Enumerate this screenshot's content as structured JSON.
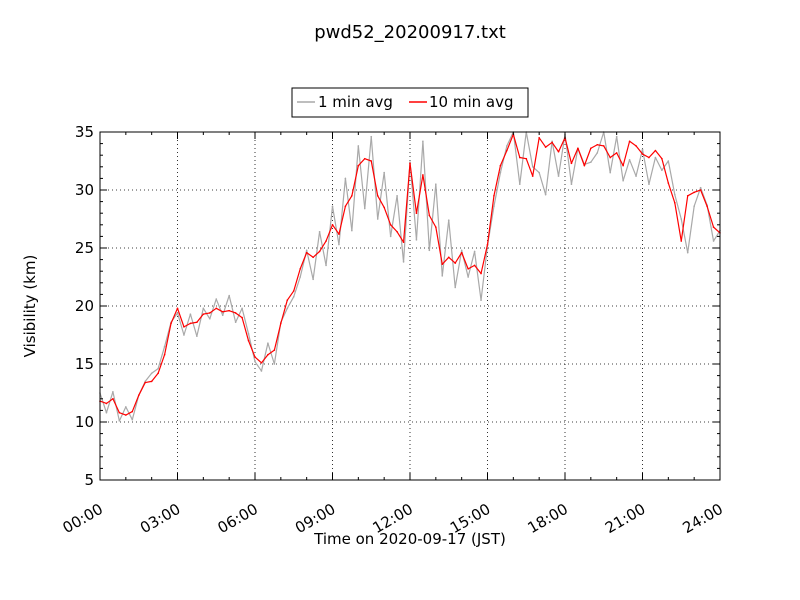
{
  "chart_data": {
    "type": "line",
    "title": "pwd52_20200917.txt",
    "xlabel": "Time on 2020-09-17 (JST)",
    "ylabel": "Visibility (km)",
    "xlim": [
      "00:00",
      "24:00"
    ],
    "ylim": [
      5,
      35
    ],
    "x_tick_labels": [
      "00:00",
      "03:00",
      "06:00",
      "09:00",
      "12:00",
      "15:00",
      "18:00",
      "21:00",
      "24:00"
    ],
    "y_tick_labels": [
      "5",
      "10",
      "15",
      "20",
      "25",
      "30",
      "35"
    ],
    "grid": true,
    "legend_position": "top-center",
    "series": [
      {
        "name": "1 min avg",
        "color": "#a9a9a9",
        "x_hours": [
          0,
          0.25,
          0.5,
          0.75,
          1,
          1.25,
          1.5,
          1.75,
          2,
          2.25,
          2.5,
          2.75,
          3,
          3.25,
          3.5,
          3.75,
          4,
          4.25,
          4.5,
          4.75,
          5,
          5.25,
          5.5,
          5.75,
          6,
          6.25,
          6.5,
          6.75,
          7,
          7.25,
          7.5,
          7.75,
          8,
          8.25,
          8.5,
          8.75,
          9,
          9.25,
          9.5,
          9.75,
          10,
          10.25,
          10.5,
          10.75,
          11,
          11.25,
          11.5,
          11.75,
          12,
          12.25,
          12.5,
          12.75,
          13,
          13.25,
          13.5,
          13.75,
          14,
          14.25,
          14.5,
          14.75,
          15,
          15.25,
          15.5,
          15.75,
          16,
          16.25,
          16.5,
          16.75,
          17,
          17.25,
          17.5,
          17.75,
          18,
          18.25,
          18.5,
          18.75,
          19,
          19.25,
          19.5,
          19.75,
          20,
          20.25,
          20.5,
          20.75,
          21,
          21.25,
          21.5,
          21.75,
          22,
          22.25,
          22.5,
          22.75,
          23,
          23.25,
          23.5,
          23.75,
          24
        ],
        "values": [
          12.5,
          10.8,
          12.6,
          10.1,
          11.3,
          10.2,
          12.3,
          13.5,
          14.2,
          14.6,
          16.5,
          18.6,
          19.4,
          17.5,
          19.3,
          17.4,
          19.8,
          18.9,
          20.6,
          19.2,
          20.9,
          18.6,
          19.8,
          17.6,
          15.2,
          14.4,
          16.8,
          15.0,
          18.6,
          19.8,
          20.8,
          22.5,
          24.8,
          22.3,
          26.4,
          23.5,
          28.6,
          25.3,
          31.0,
          26.5,
          33.8,
          28.4,
          34.6,
          27.5,
          31.5,
          26.0,
          29.5,
          23.8,
          32.4,
          25.7,
          34.2,
          24.8,
          30.5,
          22.6,
          27.4,
          21.6,
          24.8,
          22.5,
          24.7,
          20.5,
          25.2,
          28.6,
          31.5,
          33.8,
          35.0,
          30.5,
          35.0,
          32.0,
          31.5,
          29.6,
          34.2,
          31.2,
          34.8,
          30.5,
          33.6,
          32.2,
          32.4,
          33.2,
          35.0,
          31.5,
          34.6,
          30.8,
          32.6,
          31.2,
          33.5,
          30.5,
          32.8,
          31.7,
          32.5,
          29.6,
          27.5,
          24.6,
          28.6,
          30.2,
          28.7,
          25.6,
          26.5
        ]
      },
      {
        "name": "10 min avg",
        "color": "#ff0000",
        "x_hours": [
          0,
          0.25,
          0.5,
          0.75,
          1,
          1.25,
          1.5,
          1.75,
          2,
          2.25,
          2.5,
          2.75,
          3,
          3.25,
          3.5,
          3.75,
          4,
          4.25,
          4.5,
          4.75,
          5,
          5.25,
          5.5,
          5.75,
          6,
          6.25,
          6.5,
          6.75,
          7,
          7.25,
          7.5,
          7.75,
          8,
          8.25,
          8.5,
          8.75,
          9,
          9.25,
          9.5,
          9.75,
          10,
          10.25,
          10.5,
          10.75,
          11,
          11.25,
          11.5,
          11.75,
          12,
          12.25,
          12.5,
          12.75,
          13,
          13.25,
          13.5,
          13.75,
          14,
          14.25,
          14.5,
          14.75,
          15,
          15.25,
          15.5,
          15.75,
          16,
          16.25,
          16.5,
          16.75,
          17,
          17.25,
          17.5,
          17.75,
          18,
          18.25,
          18.5,
          18.75,
          19,
          19.25,
          19.5,
          19.75,
          20,
          20.25,
          20.5,
          20.75,
          21,
          21.25,
          21.5,
          21.75,
          22,
          22.25,
          22.5,
          22.75,
          23,
          23.25,
          23.5,
          23.75,
          24
        ],
        "values": [
          11.8,
          11.6,
          12.0,
          10.8,
          10.6,
          10.9,
          12.3,
          13.4,
          13.5,
          14.2,
          15.8,
          18.5,
          19.8,
          18.2,
          18.5,
          18.6,
          19.3,
          19.4,
          19.8,
          19.5,
          19.6,
          19.4,
          19.0,
          17.0,
          15.6,
          15.1,
          15.8,
          16.2,
          18.5,
          20.5,
          21.3,
          23.2,
          24.6,
          24.2,
          24.7,
          25.6,
          27.0,
          26.2,
          28.6,
          29.5,
          32.1,
          32.7,
          32.5,
          29.5,
          28.5,
          27.0,
          26.4,
          25.5,
          32.3,
          28.0,
          31.3,
          27.8,
          26.8,
          23.6,
          24.2,
          23.7,
          24.6,
          23.2,
          23.5,
          22.8,
          25.3,
          29.5,
          32.1,
          33.4,
          34.8,
          32.8,
          32.7,
          31.2,
          34.5,
          33.7,
          34.1,
          33.3,
          34.5,
          32.3,
          33.6,
          32.1,
          33.6,
          33.9,
          33.8,
          32.8,
          33.2,
          32.1,
          34.2,
          33.8,
          33.1,
          32.8,
          33.4,
          32.7,
          30.6,
          28.9,
          25.6,
          29.5,
          29.8,
          30.0,
          28.6,
          26.8,
          26.3
        ]
      }
    ]
  }
}
